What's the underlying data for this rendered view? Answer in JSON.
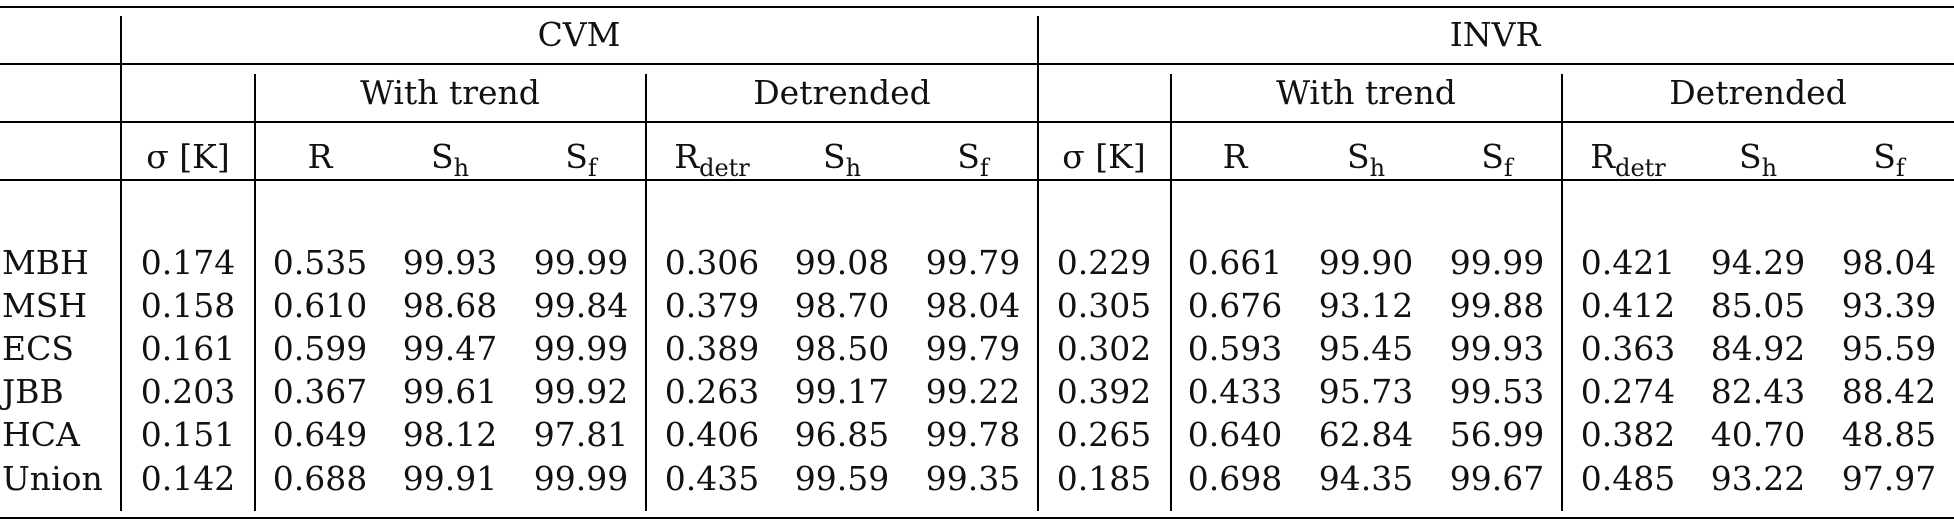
{
  "table": {
    "groups": [
      "CVM",
      "INVR"
    ],
    "subgroups": [
      "With trend",
      "Detrended",
      "With trend",
      "Detrended"
    ],
    "sigma_label": "σ [K]",
    "cols": [
      {
        "base": "R",
        "sub": ""
      },
      {
        "base": "S",
        "sub": "h"
      },
      {
        "base": "S",
        "sub": "f"
      },
      {
        "base": "R",
        "sub": "detr"
      },
      {
        "base": "S",
        "sub": "h"
      },
      {
        "base": "S",
        "sub": "f"
      }
    ],
    "rows": [
      {
        "label": "MBH",
        "cells": [
          "0.174",
          "0.535",
          "99.93",
          "99.99",
          "0.306",
          "99.08",
          "99.79",
          "0.229",
          "0.661",
          "99.90",
          "99.99",
          "0.421",
          "94.29",
          "98.04"
        ]
      },
      {
        "label": "MSH",
        "cells": [
          "0.158",
          "0.610",
          "98.68",
          "99.84",
          "0.379",
          "98.70",
          "98.04",
          "0.305",
          "0.676",
          "93.12",
          "99.88",
          "0.412",
          "85.05",
          "93.39"
        ]
      },
      {
        "label": "ECS",
        "cells": [
          "0.161",
          "0.599",
          "99.47",
          "99.99",
          "0.389",
          "98.50",
          "99.79",
          "0.302",
          "0.593",
          "95.45",
          "99.93",
          "0.363",
          "84.92",
          "95.59"
        ]
      },
      {
        "label": "JBB",
        "cells": [
          "0.203",
          "0.367",
          "99.61",
          "99.92",
          "0.263",
          "99.17",
          "99.22",
          "0.392",
          "0.433",
          "95.73",
          "99.53",
          "0.274",
          "82.43",
          "88.42"
        ]
      },
      {
        "label": "HCA",
        "cells": [
          "0.151",
          "0.649",
          "98.12",
          "97.81",
          "0.406",
          "96.85",
          "99.78",
          "0.265",
          "0.640",
          "62.84",
          "56.99",
          "0.382",
          "40.70",
          "48.85"
        ]
      },
      {
        "label": "Union",
        "cells": [
          "0.142",
          "0.688",
          "99.91",
          "99.99",
          "0.435",
          "99.59",
          "99.35",
          "0.185",
          "0.698",
          "94.35",
          "99.67",
          "0.485",
          "93.22",
          "97.97"
        ]
      }
    ]
  }
}
